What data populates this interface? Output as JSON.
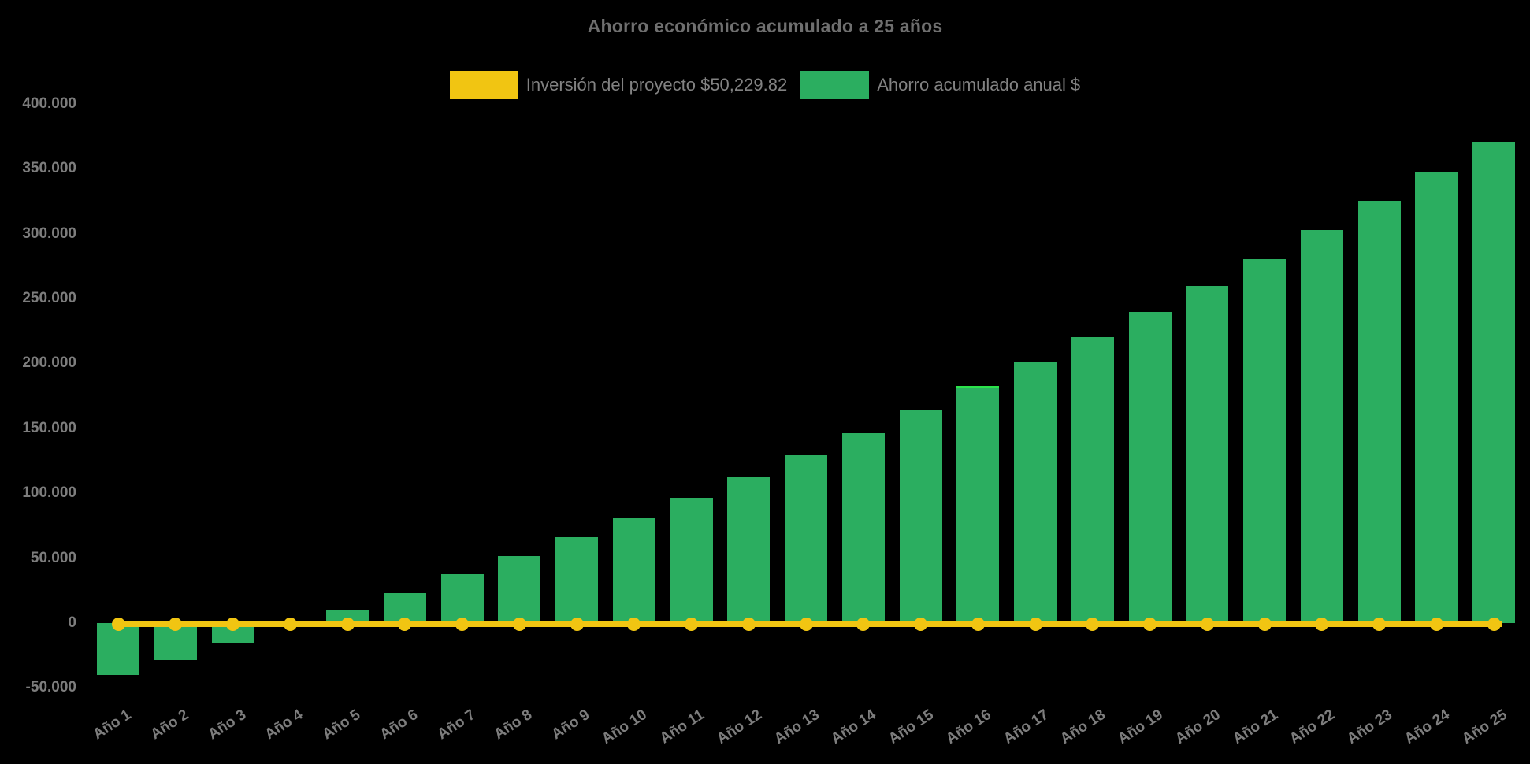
{
  "title": "Ahorro económico acumulado a 25 años",
  "legend": {
    "items": [
      {
        "label": "Inversión del proyecto $50,229.82",
        "color": "#f1c512",
        "series": "investment-line"
      },
      {
        "label": "Ahorro acumulado anual $",
        "color": "#2bae60",
        "series": "savings-bars"
      }
    ]
  },
  "colors": {
    "background": "#000000",
    "bar_green": "#2bae60",
    "bar_highlight_edge": "#2be34a",
    "line_yellow": "#f1c512",
    "text_gray": "#7d7d7d",
    "title_gray": "#6f6f6f"
  },
  "chart_data": {
    "type": "bar",
    "title": "Ahorro económico acumulado a 25 años",
    "xlabel": "",
    "ylabel": "",
    "ylim": [
      -50000,
      400000
    ],
    "grid": false,
    "legend_position": "top",
    "categories": [
      "Año 1",
      "Año 2",
      "Año 3",
      "Año 4",
      "Año 5",
      "Año 6",
      "Año 7",
      "Año 8",
      "Año 9",
      "Año 10",
      "Año 11",
      "Año 12",
      "Año 13",
      "Año 14",
      "Año 15",
      "Año 16",
      "Año 17",
      "Año 18",
      "Año 19",
      "Año 20",
      "Año 21",
      "Año 22",
      "Año 23",
      "Año 24",
      "Año 25"
    ],
    "series": [
      {
        "name": "Inversión del proyecto $50,229.82",
        "type": "line",
        "color": "#f1c512",
        "marker": "circle",
        "values": [
          0,
          0,
          0,
          0,
          0,
          0,
          0,
          0,
          0,
          0,
          0,
          0,
          0,
          0,
          0,
          0,
          0,
          0,
          0,
          0,
          0,
          0,
          0,
          0,
          0
        ]
      },
      {
        "name": "Ahorro acumulado anual $",
        "type": "bar",
        "color": "#2bae60",
        "values": [
          -40000,
          -28500,
          -15000,
          -1500,
          10000,
          23000,
          37500,
          51500,
          66000,
          81000,
          96500,
          112000,
          129500,
          146500,
          164500,
          182500,
          201000,
          220000,
          239500,
          260000,
          280500,
          302500,
          325000,
          347500,
          371000
        ]
      }
    ],
    "highlighted_bar_index": 15,
    "y_ticks": [
      {
        "value": 400000,
        "label": "400.000"
      },
      {
        "value": 350000,
        "label": "350.000"
      },
      {
        "value": 300000,
        "label": "300.000"
      },
      {
        "value": 250000,
        "label": "250.000"
      },
      {
        "value": 200000,
        "label": "200.000"
      },
      {
        "value": 150000,
        "label": "150.000"
      },
      {
        "value": 100000,
        "label": "100.000"
      },
      {
        "value": 50000,
        "label": "50.000"
      },
      {
        "value": 0,
        "label": "0"
      },
      {
        "value": -50000,
        "label": "-50.000"
      }
    ]
  }
}
